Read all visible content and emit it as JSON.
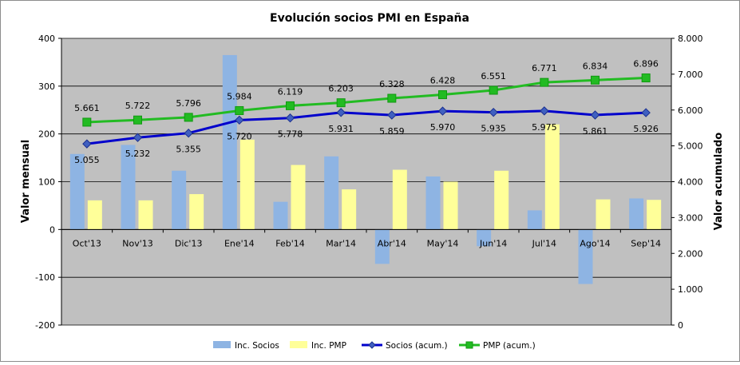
{
  "chart_data": {
    "type": "bar",
    "title": "Evolución socios PMI en España",
    "categories": [
      "Oct'13",
      "Nov'13",
      "Dic'13",
      "Ene'14",
      "Feb'14",
      "Mar'14",
      "Abr'14",
      "May'14",
      "Jun'14",
      "Jul'14",
      "Ago'14",
      "Sep'14"
    ],
    "ylabel": "Valor mensual",
    "y2label": "Valor acumulado",
    "ylim": [
      -200,
      400
    ],
    "y2lim": [
      0,
      8000
    ],
    "yticks": [
      "-200",
      "-100",
      "0",
      "100",
      "200",
      "300",
      "400"
    ],
    "y2ticks": [
      "0",
      "1.000",
      "2.000",
      "3.000",
      "4.000",
      "5.000",
      "6.000",
      "7.000",
      "8.000"
    ],
    "grid": true,
    "legend_position": "bottom",
    "series": [
      {
        "name": "Inc. Socios",
        "type": "bar",
        "axis": "left",
        "color": "#8eb4e3",
        "values": [
          158,
          177,
          123,
          365,
          58,
          153,
          -72,
          111,
          -35,
          40,
          -114,
          65
        ]
      },
      {
        "name": "Inc. PMP",
        "type": "bar",
        "axis": "left",
        "color": "#ffff99",
        "values": [
          61,
          61,
          74,
          188,
          135,
          84,
          125,
          100,
          123,
          220,
          63,
          62
        ]
      },
      {
        "name": "Socios (acum.)",
        "type": "line",
        "axis": "right",
        "color": "#0000cc",
        "marker": "diamond",
        "values": [
          5055,
          5232,
          5355,
          5720,
          5778,
          5931,
          5859,
          5970,
          5935,
          5975,
          5861,
          5926
        ],
        "labels": [
          "5.055",
          "5.232",
          "5.355",
          "5.720",
          "5.778",
          "5.931",
          "5.859",
          "5.970",
          "5.935",
          "5.975",
          "5.861",
          "5.926"
        ]
      },
      {
        "name": "PMP (acum.)",
        "type": "line",
        "axis": "right",
        "color": "#22bb22",
        "marker": "square",
        "values": [
          5661,
          5722,
          5796,
          5984,
          6119,
          6203,
          6328,
          6428,
          6551,
          6771,
          6834,
          6896
        ],
        "labels": [
          "5.661",
          "5.722",
          "5.796",
          "5.984",
          "6.119",
          "6.203",
          "6.328",
          "6.428",
          "6.551",
          "6.771",
          "6.834",
          "6.896"
        ]
      }
    ]
  },
  "colors": {
    "plot_background": "#c0c0c0",
    "gridline": "#000000"
  }
}
